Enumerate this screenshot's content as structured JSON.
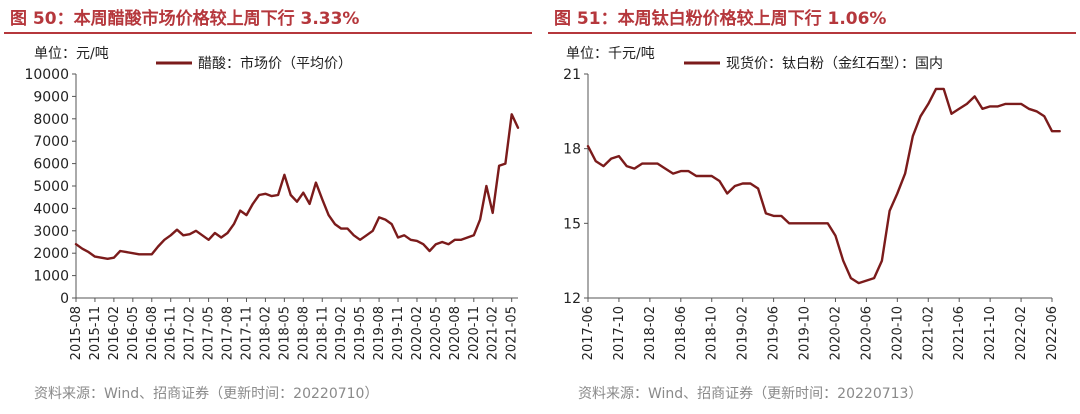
{
  "panels": [
    {
      "fig_title": "图 50：本周醋酸市场价格较上周下行 3.33%",
      "source": "资料来源：Wind、招商证券（更新时间：20220710）"
    },
    {
      "fig_title": "图 51：本周钛白粉价格较上周下行 1.06%",
      "source": "资料来源：Wind、招商证券（更新时间：20220713）"
    }
  ],
  "chart_data": [
    {
      "type": "line",
      "title": "本周醋酸市场价格较上周下行 3.33%",
      "ylabel": "单位：元/吨",
      "xlabel": "",
      "ylim": [
        0,
        10000
      ],
      "yticks": [
        0,
        1000,
        2000,
        3000,
        4000,
        5000,
        6000,
        7000,
        8000,
        9000,
        10000
      ],
      "xticks": [
        "2015-08",
        "2015-11",
        "2016-02",
        "2016-05",
        "2016-08",
        "2016-11",
        "2017-02",
        "2017-05",
        "2017-08",
        "2017-11",
        "2018-02",
        "2018-05",
        "2018-08",
        "2018-11",
        "2019-02",
        "2019-05",
        "2019-08",
        "2019-11",
        "2020-02",
        "2020-05",
        "2020-08",
        "2020-11",
        "2021-02",
        "2021-05"
      ],
      "x_range": [
        "2015-08",
        "2021-06"
      ],
      "legend_position": "top",
      "grid": false,
      "colors": {
        "series": "#7b1b1b",
        "axis": "#555555"
      },
      "series": [
        {
          "name": "醋酸：市场价（平均价）",
          "x": [
            "2015-08",
            "2015-09",
            "2015-10",
            "2015-11",
            "2015-12",
            "2016-01",
            "2016-02",
            "2016-03",
            "2016-04",
            "2016-05",
            "2016-06",
            "2016-07",
            "2016-08",
            "2016-09",
            "2016-10",
            "2016-11",
            "2016-12",
            "2017-01",
            "2017-02",
            "2017-03",
            "2017-04",
            "2017-05",
            "2017-06",
            "2017-07",
            "2017-08",
            "2017-09",
            "2017-10",
            "2017-11",
            "2017-12",
            "2018-01",
            "2018-02",
            "2018-03",
            "2018-04",
            "2018-05",
            "2018-06",
            "2018-07",
            "2018-08",
            "2018-09",
            "2018-10",
            "2018-11",
            "2018-12",
            "2019-01",
            "2019-02",
            "2019-03",
            "2019-04",
            "2019-05",
            "2019-06",
            "2019-07",
            "2019-08",
            "2019-09",
            "2019-10",
            "2019-11",
            "2019-12",
            "2020-01",
            "2020-02",
            "2020-03",
            "2020-04",
            "2020-05",
            "2020-06",
            "2020-07",
            "2020-08",
            "2020-09",
            "2020-10",
            "2020-11",
            "2020-12",
            "2021-01",
            "2021-02",
            "2021-03",
            "2021-04",
            "2021-05",
            "2021-06"
          ],
          "values": [
            2400,
            2200,
            2050,
            1850,
            1800,
            1750,
            1800,
            2100,
            2050,
            2000,
            1950,
            1950,
            1950,
            2300,
            2600,
            2800,
            3050,
            2800,
            2850,
            3000,
            2800,
            2600,
            2900,
            2700,
            2900,
            3300,
            3900,
            3700,
            4200,
            4600,
            4650,
            4550,
            4600,
            5500,
            4600,
            4300,
            4700,
            4200,
            5150,
            4400,
            3700,
            3300,
            3100,
            3100,
            2800,
            2600,
            2800,
            3000,
            3600,
            3500,
            3300,
            2700,
            2800,
            2600,
            2550,
            2400,
            2100,
            2400,
            2500,
            2400,
            2600,
            2600,
            2700,
            2800,
            3500,
            5000,
            3800,
            5900,
            6000,
            8200,
            7600
          ]
        }
      ]
    },
    {
      "type": "line",
      "title": "本周钛白粉价格较上周下行 1.06%",
      "ylabel": "单位：千元/吨",
      "xlabel": "",
      "ylim": [
        12,
        21
      ],
      "yticks": [
        12,
        15,
        18,
        21
      ],
      "xticks": [
        "2017-06",
        "2017-10",
        "2018-02",
        "2018-06",
        "2018-10",
        "2019-02",
        "2019-06",
        "2019-10",
        "2020-02",
        "2020-06",
        "2020-10",
        "2021-02",
        "2021-06",
        "2021-10",
        "2022-02",
        "2022-06"
      ],
      "x_range": [
        "2017-06",
        "2022-06"
      ],
      "legend_position": "top",
      "grid": false,
      "colors": {
        "series": "#7b1b1b",
        "axis": "#555555"
      },
      "series": [
        {
          "name": "现货价：钛白粉（金红石型）：国内",
          "x": [
            "2017-06",
            "2017-07",
            "2017-08",
            "2017-09",
            "2017-10",
            "2017-11",
            "2017-12",
            "2018-01",
            "2018-02",
            "2018-03",
            "2018-04",
            "2018-05",
            "2018-06",
            "2018-07",
            "2018-08",
            "2018-09",
            "2018-10",
            "2018-11",
            "2018-12",
            "2019-01",
            "2019-02",
            "2019-03",
            "2019-04",
            "2019-05",
            "2019-06",
            "2019-07",
            "2019-08",
            "2019-09",
            "2019-10",
            "2019-11",
            "2019-12",
            "2020-01",
            "2020-02",
            "2020-03",
            "2020-04",
            "2020-05",
            "2020-06",
            "2020-07",
            "2020-08",
            "2020-09",
            "2020-10",
            "2020-11",
            "2020-12",
            "2021-01",
            "2021-02",
            "2021-03",
            "2021-04",
            "2021-05",
            "2021-06",
            "2021-07",
            "2021-08",
            "2021-09",
            "2021-10",
            "2021-11",
            "2021-12",
            "2022-01",
            "2022-02",
            "2022-03",
            "2022-04",
            "2022-05",
            "2022-06",
            "2022-07"
          ],
          "values": [
            18.1,
            17.5,
            17.3,
            17.6,
            17.7,
            17.3,
            17.2,
            17.4,
            17.4,
            17.4,
            17.2,
            17.0,
            17.1,
            17.1,
            16.9,
            16.9,
            16.9,
            16.7,
            16.2,
            16.5,
            16.6,
            16.6,
            16.4,
            15.4,
            15.3,
            15.3,
            15.0,
            15.0,
            15.0,
            15.0,
            15.0,
            15.0,
            14.5,
            13.5,
            12.8,
            12.6,
            12.7,
            12.8,
            13.5,
            15.5,
            16.2,
            17.0,
            18.5,
            19.3,
            19.8,
            20.4,
            20.4,
            19.4,
            19.6,
            19.8,
            20.1,
            19.6,
            19.7,
            19.7,
            19.8,
            19.8,
            19.8,
            19.6,
            19.5,
            19.3,
            18.7,
            18.7
          ]
        }
      ]
    }
  ]
}
